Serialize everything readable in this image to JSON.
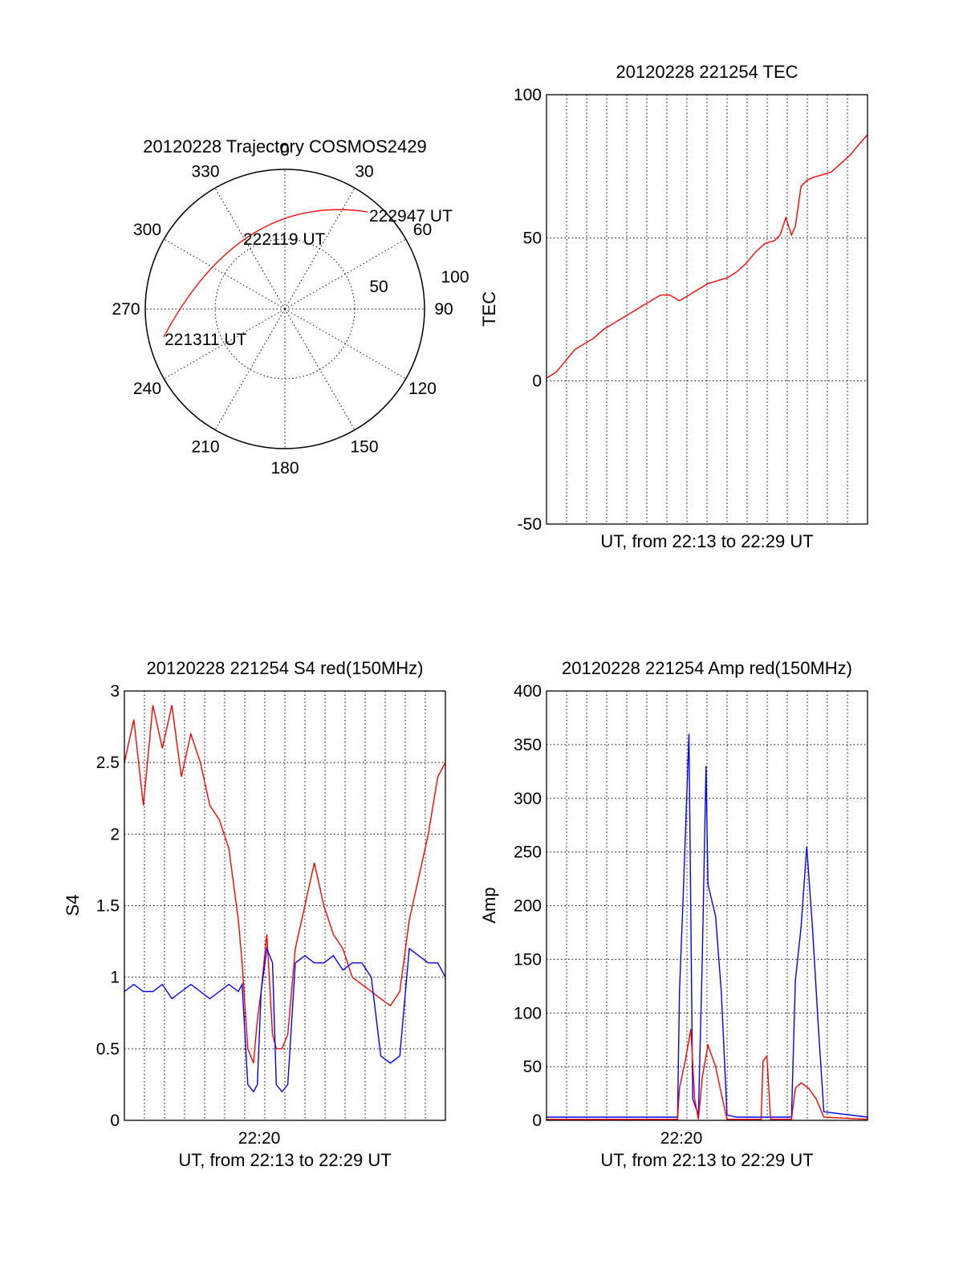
{
  "colors": {
    "red_series": "#ff0000",
    "blue_series": "#0000ff",
    "axes": "#000000",
    "background": "#ffffff"
  },
  "polar": {
    "title": "20120228 Trajectory COSMOS2429",
    "azimuth_ticks": [
      "0",
      "30",
      "60",
      "90",
      "120",
      "150",
      "180",
      "210",
      "240",
      "270",
      "300",
      "330"
    ],
    "elevation_ticks": [
      "50",
      "100"
    ],
    "annotations": [
      "222947 UT",
      "222119 UT",
      "221311 UT"
    ],
    "grid": true
  },
  "chart_data": [
    {
      "id": "tec",
      "type": "line",
      "title": "20120228 221254 TEC",
      "xlabel": "UT, from 22:13 to 22:29 UT",
      "ylabel": "TEC",
      "ylim": [
        -50,
        100
      ],
      "yticks": [
        "100",
        "50",
        "0",
        "-50"
      ],
      "xticks": [],
      "x_unit": "minutes after 22:12:54 UT",
      "xlim": [
        0,
        16.9
      ],
      "grid": true,
      "series": [
        {
          "color": "#ff0000",
          "x": [
            0,
            0.5,
            1,
            1.5,
            2,
            2.5,
            3,
            3.5,
            4,
            4.5,
            5,
            5.5,
            6,
            6.5,
            7,
            7.5,
            8,
            8.5,
            9,
            9.5,
            10,
            10.5,
            11,
            11.5,
            12,
            12.3,
            12.6,
            12.9,
            13.1,
            13.4,
            13.7,
            14,
            14.5,
            15,
            15.5,
            16,
            16.5,
            16.9
          ],
          "y": [
            1,
            3,
            7,
            11,
            13,
            15,
            18,
            20,
            22,
            24,
            26,
            28,
            30,
            30,
            28,
            30,
            32,
            34,
            35,
            36,
            38,
            41,
            45,
            48,
            49,
            51,
            57,
            51,
            54,
            68,
            70,
            71,
            72,
            73,
            76,
            79,
            83,
            86
          ]
        }
      ]
    },
    {
      "id": "s4",
      "type": "line",
      "title": "20120228 221254 S4 red(150MHz)",
      "xlabel": "UT, from 22:13 to 22:29 UT",
      "ylabel": "S4",
      "ylim": [
        0,
        3
      ],
      "yticks": [
        "3",
        "2.5",
        "2",
        "1.5",
        "1",
        "0.5",
        "0"
      ],
      "xticks": [
        "22:20"
      ],
      "x_unit": "minutes after 22:12:54 UT",
      "xlim": [
        0,
        16.9
      ],
      "grid": true,
      "series": [
        {
          "color": "#ff0000",
          "x": [
            0,
            0.5,
            1,
            1.5,
            2,
            2.5,
            3,
            3.5,
            4,
            4.5,
            5,
            5.5,
            6,
            6.2,
            6.5,
            6.8,
            7,
            7.2,
            7.5,
            7.8,
            8,
            8.3,
            8.6,
            9,
            9.5,
            10,
            10.5,
            11,
            11.5,
            12,
            12.5,
            13,
            13.5,
            14,
            14.5,
            15,
            15.5,
            16,
            16.5,
            16.9
          ],
          "y": [
            2.5,
            2.8,
            2.2,
            2.9,
            2.6,
            2.9,
            2.4,
            2.7,
            2.5,
            2.2,
            2.1,
            1.9,
            1.4,
            1.1,
            0.5,
            0.4,
            0.7,
            0.9,
            1.3,
            0.6,
            0.5,
            0.5,
            0.6,
            1.2,
            1.5,
            1.8,
            1.5,
            1.3,
            1.2,
            1.0,
            0.95,
            0.9,
            0.85,
            0.8,
            0.9,
            1.4,
            1.7,
            2.0,
            2.4,
            2.5
          ]
        },
        {
          "color": "#0000ff",
          "x": [
            0,
            0.5,
            1,
            1.5,
            2,
            2.5,
            3,
            3.5,
            4,
            4.5,
            5,
            5.5,
            6,
            6.2,
            6.5,
            6.8,
            7,
            7.2,
            7.5,
            7.8,
            8,
            8.3,
            8.6,
            9,
            9.5,
            10,
            10.5,
            11,
            11.5,
            12,
            12.5,
            13,
            13.5,
            14,
            14.5,
            15,
            15.5,
            16,
            16.5,
            16.9
          ],
          "y": [
            0.9,
            0.95,
            0.9,
            0.9,
            0.95,
            0.85,
            0.9,
            0.95,
            0.9,
            0.85,
            0.9,
            0.95,
            0.9,
            0.95,
            0.25,
            0.2,
            0.25,
            0.9,
            1.2,
            1.1,
            0.25,
            0.2,
            0.25,
            1.1,
            1.15,
            1.1,
            1.1,
            1.15,
            1.05,
            1.1,
            1.1,
            1.0,
            0.45,
            0.4,
            0.45,
            1.2,
            1.15,
            1.1,
            1.1,
            1.0
          ]
        }
      ]
    },
    {
      "id": "amp",
      "type": "line",
      "title": "20120228 221254 Amp red(150MHz)",
      "xlabel": "UT, from 22:13 to 22:29 UT",
      "ylabel": "Amp",
      "ylim": [
        0,
        400
      ],
      "yticks": [
        "400",
        "350",
        "300",
        "250",
        "200",
        "150",
        "100",
        "50",
        "0"
      ],
      "xticks": [
        "22:20"
      ],
      "x_unit": "minutes after 22:12:54 UT",
      "xlim": [
        0,
        16.9
      ],
      "grid": true,
      "series": [
        {
          "color": "#0000ff",
          "x": [
            0,
            6.9,
            7.0,
            7.2,
            7.5,
            7.7,
            8.0,
            8.2,
            8.4,
            8.5,
            8.9,
            9.2,
            9.5,
            10.0,
            12.9,
            13.1,
            13.4,
            13.7,
            14.0,
            14.3,
            14.6,
            16.9
          ],
          "y": [
            3,
            3,
            120,
            210,
            360,
            20,
            5,
            150,
            330,
            220,
            190,
            120,
            5,
            3,
            3,
            130,
            180,
            255,
            180,
            90,
            8,
            3
          ]
        },
        {
          "color": "#ff0000",
          "x": [
            0,
            6.9,
            7.0,
            7.3,
            7.6,
            7.8,
            8.0,
            8.2,
            8.5,
            8.9,
            9.2,
            9.5,
            11.3,
            11.4,
            11.6,
            11.8,
            12.9,
            13.1,
            13.4,
            13.8,
            14.2,
            14.6,
            16.9
          ],
          "y": [
            1,
            1,
            30,
            55,
            85,
            20,
            1,
            40,
            70,
            50,
            25,
            1,
            1,
            55,
            60,
            1,
            1,
            30,
            35,
            30,
            20,
            3,
            1
          ]
        }
      ]
    }
  ]
}
